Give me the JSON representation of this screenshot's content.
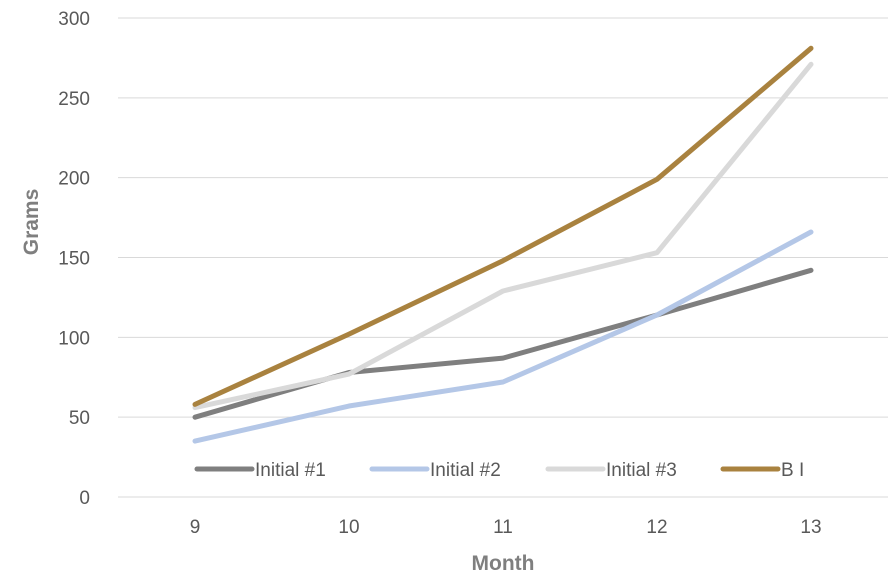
{
  "chart_data": {
    "type": "line",
    "title": "",
    "xlabel": "Month",
    "ylabel": "Grams",
    "categories": [
      "9",
      "10",
      "11",
      "12",
      "13"
    ],
    "ylim": [
      0,
      300
    ],
    "yticks": [
      "0",
      "50",
      "100",
      "150",
      "200",
      "250",
      "300"
    ],
    "grid": true,
    "legend_position": "bottom-inside",
    "series": [
      {
        "name": "Initial #1",
        "color": "#7f7f7f",
        "values": [
          50,
          78,
          87,
          114,
          142
        ]
      },
      {
        "name": "Initial #2",
        "color": "#b4c7e7",
        "values": [
          35,
          57,
          72,
          114,
          166
        ]
      },
      {
        "name": "Initial #3",
        "color": "#d9d9d9",
        "values": [
          56,
          77,
          129,
          153,
          271
        ]
      },
      {
        "name": "B I",
        "color": "#a9823f",
        "values": [
          58,
          102,
          148,
          199,
          281
        ]
      }
    ]
  }
}
